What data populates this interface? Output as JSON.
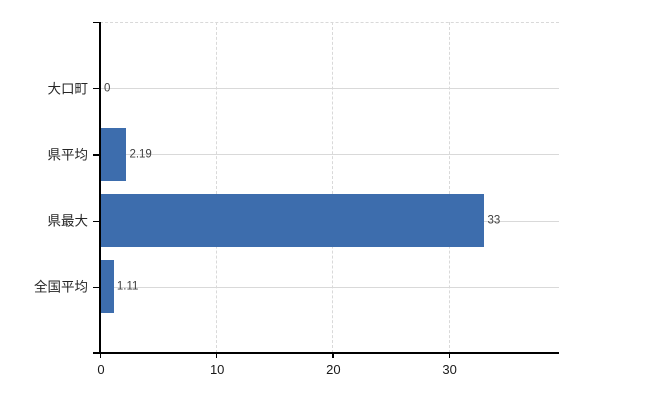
{
  "chart_data": {
    "type": "bar",
    "orientation": "horizontal",
    "title": "",
    "categories": [
      "大口町",
      "県平均",
      "県最大",
      "全国平均"
    ],
    "values": [
      0,
      2.19,
      33,
      1.11
    ],
    "value_labels": [
      "0",
      "2.19",
      "33",
      "1.11"
    ],
    "x_ticks": [
      0,
      10,
      20,
      30
    ],
    "x_tick_labels": [
      "0",
      "10",
      "20",
      "30"
    ],
    "xlim": [
      0,
      39.5
    ],
    "grid": true,
    "legend": false,
    "gridline_style": {
      "horizontal": "solid",
      "vertical": "dashed",
      "plot_top_border": "dashed"
    },
    "colors": {
      "bar": "#3d6dad",
      "grid": "#d9d9d9",
      "axis": "#000000",
      "category_text": "#262626",
      "value_text": "#3f3f3f",
      "tick_text": "#1a1a1a",
      "background": "#ffffff"
    }
  }
}
